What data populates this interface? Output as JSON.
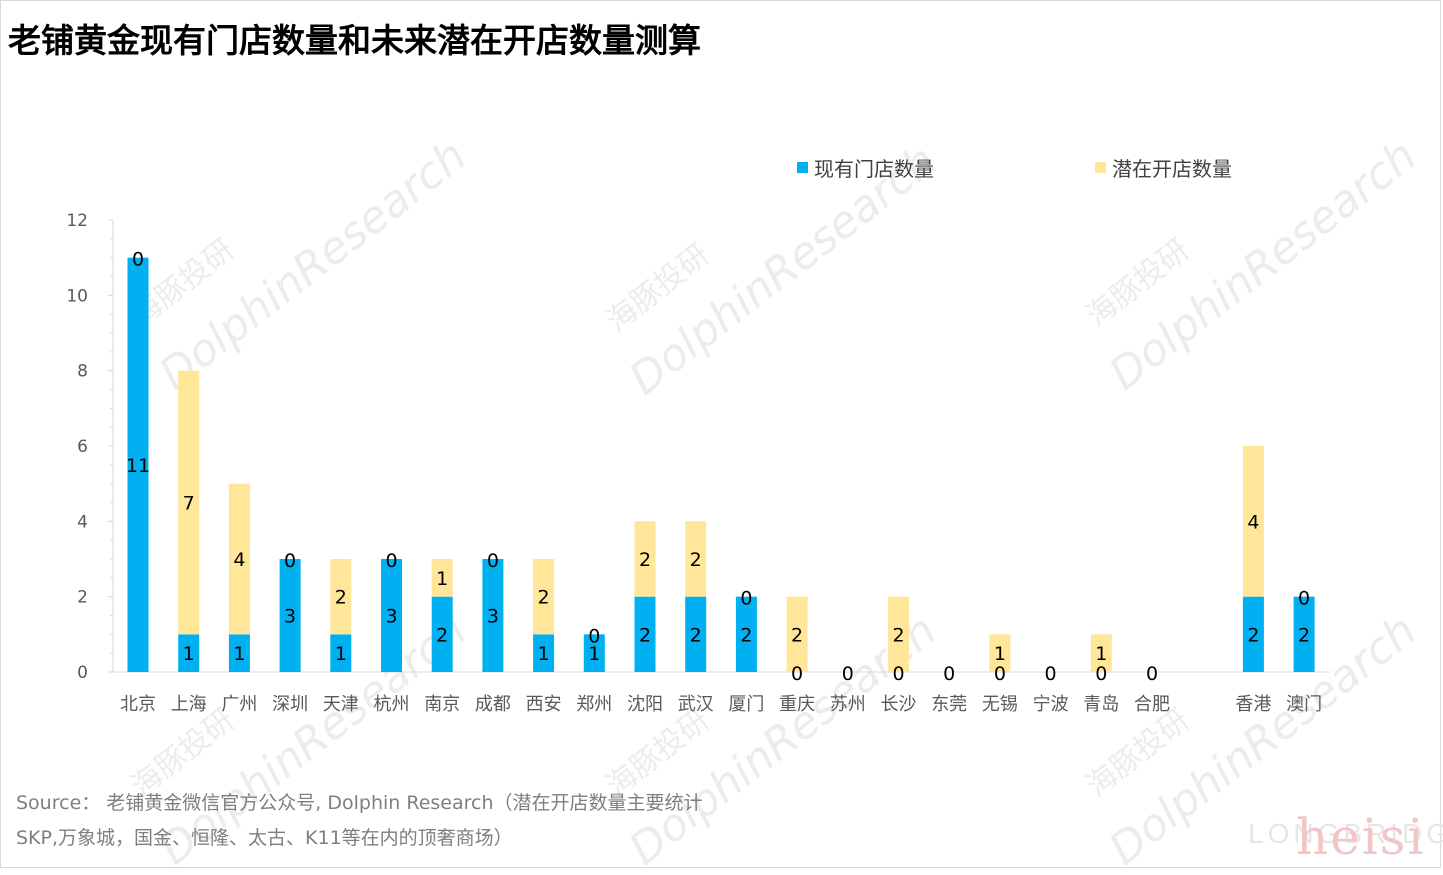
{
  "title": "老铺黄金现有门店数量和未来潜在开店数量测算",
  "source_lines": [
    "Source： 老铺黄金微信官方公众号, Dolphin Research（潜在开店数量主要统计",
    "SKP,万象城，国金、恒隆、太古、K11等在内的顶奢商场）"
  ],
  "watermarks": {
    "cn": "海豚投研",
    "en": "DolphinResearch",
    "corner_1": "LONGBRIDGE",
    "corner_2": "heisi"
  },
  "colors": {
    "existing": "#00b0f0",
    "potential": "#ffe699",
    "axis": "#d9d9d9",
    "tick_text": "#595959"
  },
  "chart_data": {
    "type": "bar",
    "stacked": true,
    "categories": [
      "北京",
      "上海",
      "广州",
      "深圳",
      "天津",
      "杭州",
      "南京",
      "成都",
      "西安",
      "郑州",
      "沈阳",
      "武汉",
      "厦门",
      "重庆",
      "苏州",
      "长沙",
      "东莞",
      "无锡",
      "宁波",
      "青岛",
      "合肥",
      "",
      "香港",
      "澳门"
    ],
    "series": [
      {
        "name": "现有门店数量",
        "values": [
          11,
          1,
          1,
          3,
          1,
          3,
          2,
          3,
          1,
          1,
          2,
          2,
          2,
          0,
          0,
          0,
          0,
          0,
          0,
          0,
          0,
          null,
          2,
          2
        ]
      },
      {
        "name": "潜在开店数量",
        "values": [
          0,
          7,
          4,
          0,
          2,
          0,
          1,
          0,
          2,
          0,
          2,
          2,
          0,
          2,
          null,
          2,
          null,
          1,
          null,
          1,
          null,
          null,
          4,
          0
        ]
      }
    ],
    "ylim": [
      0,
      12
    ],
    "yticks": [
      0,
      2,
      4,
      6,
      8,
      10,
      12
    ],
    "legend_position": "top",
    "grid": false,
    "data_labels": true
  }
}
